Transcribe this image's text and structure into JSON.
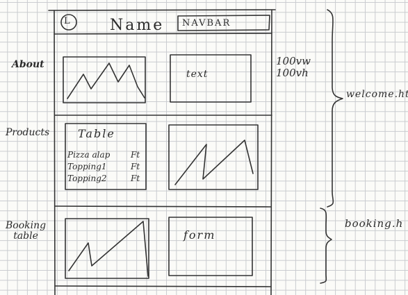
{
  "navbar": {
    "logo": "L",
    "name": "Name",
    "label": "NAVBAR"
  },
  "sections": {
    "about": "About",
    "products": "Products",
    "booking_table": [
      "Booking",
      "table"
    ]
  },
  "content": {
    "about_text": "text",
    "viewport": [
      "100vw",
      "100vh"
    ],
    "table_title": "Table",
    "table_rows": [
      {
        "item": "Pizza alap",
        "price": "Ft"
      },
      {
        "item": "Topping1",
        "price": "Ft"
      },
      {
        "item": "Topping2",
        "price": "Ft"
      }
    ],
    "form_label": "form"
  },
  "pages": {
    "welcome": "welcome.ht",
    "booking": "booking.h"
  }
}
